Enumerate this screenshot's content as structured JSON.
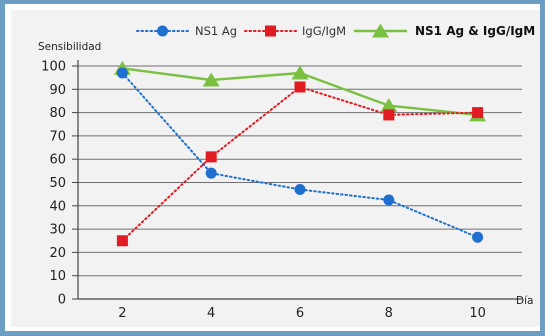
{
  "chart_data": {
    "type": "line",
    "ylabel": "Sensibilidad",
    "xlabel": "Día",
    "x": [
      2,
      4,
      6,
      8,
      10
    ],
    "xlim": [
      1,
      11
    ],
    "ylim": [
      0,
      100
    ],
    "yticks": [
      0,
      10,
      20,
      30,
      40,
      50,
      60,
      70,
      80,
      90,
      100
    ],
    "grid": true,
    "legend": "top",
    "series": [
      {
        "name": "NS1 Ag",
        "values": [
          97,
          54,
          47,
          42.5,
          26.5
        ],
        "color": "#1e6fd0",
        "marker": "circle",
        "line": "dotted"
      },
      {
        "name": "IgG/IgM",
        "values": [
          25,
          61,
          91,
          79,
          80
        ],
        "color": "#e01b22",
        "marker": "square",
        "line": "dotted"
      },
      {
        "name": "NS1 Ag & IgG/IgM",
        "values": [
          99,
          94,
          97,
          83,
          79
        ],
        "color": "#7ac142",
        "marker": "triangle",
        "line": "solid",
        "bold_label": true
      }
    ]
  }
}
